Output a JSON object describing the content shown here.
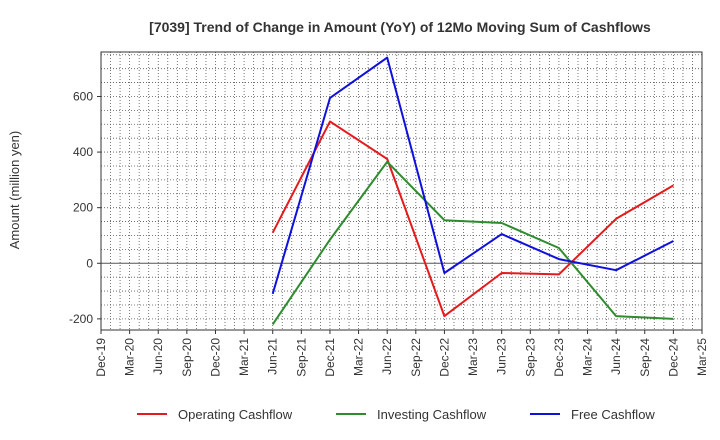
{
  "chart_data": {
    "type": "line",
    "title": "[7039]  Trend of Change in Amount (YoY) of 12Mo Moving Sum of Cashflows",
    "xlabel": "",
    "ylabel": "Amount (million yen)",
    "categories": [
      "Dec-19",
      "Mar-20",
      "Jun-20",
      "Sep-20",
      "Dec-20",
      "Mar-21",
      "Jun-21",
      "Sep-21",
      "Dec-21",
      "Mar-22",
      "Jun-22",
      "Sep-22",
      "Dec-22",
      "Mar-23",
      "Jun-23",
      "Sep-23",
      "Dec-23",
      "Mar-24",
      "Jun-24",
      "Sep-24",
      "Dec-24",
      "Mar-25"
    ],
    "ylim": [
      -240,
      760
    ],
    "yticks": [
      -200,
      0,
      200,
      400,
      600
    ],
    "grid": true,
    "legend_position": "bottom",
    "series": [
      {
        "name": "Operating Cashflow",
        "color": "#e41a1c",
        "values": [
          null,
          null,
          null,
          null,
          null,
          null,
          110,
          null,
          510,
          null,
          375,
          null,
          -190,
          null,
          -35,
          null,
          -40,
          null,
          160,
          null,
          280,
          null
        ]
      },
      {
        "name": "Investing Cashflow",
        "color": "#2e8b2e",
        "values": [
          null,
          null,
          null,
          null,
          null,
          null,
          -220,
          null,
          85,
          null,
          365,
          null,
          155,
          null,
          145,
          null,
          55,
          null,
          -190,
          null,
          -200,
          null
        ]
      },
      {
        "name": "Free Cashflow",
        "color": "#1010dd",
        "values": [
          null,
          null,
          null,
          null,
          null,
          null,
          -110,
          null,
          595,
          null,
          740,
          null,
          -35,
          null,
          105,
          null,
          15,
          null,
          -25,
          null,
          80,
          null
        ]
      }
    ]
  }
}
